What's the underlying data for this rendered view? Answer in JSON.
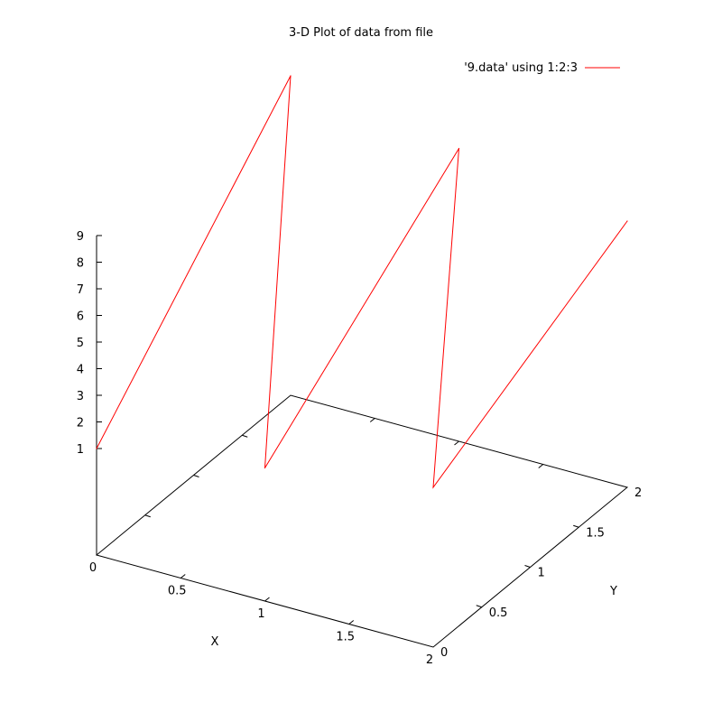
{
  "chart_data": {
    "type": "line",
    "title": "3-D Plot of data from file",
    "xlabel": "X",
    "ylabel": "Y",
    "zlabel": "",
    "xlim": [
      0,
      2
    ],
    "ylim": [
      0,
      2
    ],
    "zlim": [
      1,
      9
    ],
    "x_ticks": [
      {
        "v": 0,
        "label": "0"
      },
      {
        "v": 0.5,
        "label": "0.5"
      },
      {
        "v": 1,
        "label": "1"
      },
      {
        "v": 1.5,
        "label": "1.5"
      },
      {
        "v": 2,
        "label": "2"
      }
    ],
    "y_ticks": [
      {
        "v": 0,
        "label": "0"
      },
      {
        "v": 0.5,
        "label": "0.5"
      },
      {
        "v": 1,
        "label": "1"
      },
      {
        "v": 1.5,
        "label": "1.5"
      },
      {
        "v": 2,
        "label": "2"
      }
    ],
    "z_ticks": [
      {
        "v": 1,
        "label": "1"
      },
      {
        "v": 2,
        "label": "2"
      },
      {
        "v": 3,
        "label": "3"
      },
      {
        "v": 4,
        "label": "4"
      },
      {
        "v": 5,
        "label": "5"
      },
      {
        "v": 6,
        "label": "6"
      },
      {
        "v": 7,
        "label": "7"
      },
      {
        "v": 8,
        "label": "8"
      },
      {
        "v": 9,
        "label": "9"
      }
    ],
    "legend_position": "top-right",
    "grid": false,
    "series": [
      {
        "name": "'9.data' using 1:2:3",
        "color": "#ff0000",
        "points": [
          {
            "x": 0,
            "y": 0,
            "z": 1
          },
          {
            "x": 0,
            "y": 2,
            "z": 9
          },
          {
            "x": 1,
            "y": 0,
            "z": 2
          },
          {
            "x": 1,
            "y": 2,
            "z": 8
          },
          {
            "x": 2,
            "y": 0,
            "z": 3
          },
          {
            "x": 2,
            "y": 2,
            "z": 7
          }
        ]
      }
    ]
  }
}
